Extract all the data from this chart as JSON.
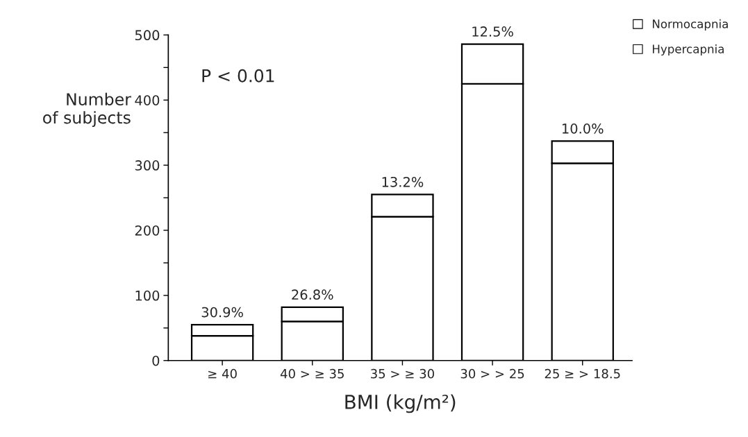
{
  "chart_data": {
    "type": "bar",
    "stacked": true,
    "xlabel": "BMI (kg/m²)",
    "ylabel": "Number\nof subjects",
    "categories": [
      "≥ 40",
      "40 > ≥ 35",
      "35 > ≥ 30",
      "30 > > 25",
      "25 ≥ > 18.5"
    ],
    "series": [
      {
        "name": "Normocapnia",
        "color": "#ffffff",
        "values": [
          38,
          60,
          221,
          425,
          303
        ]
      },
      {
        "name": "Hypercapnia",
        "color": "#ffffff",
        "values": [
          17,
          22,
          34,
          61,
          34
        ]
      }
    ],
    "ylim": [
      0,
      500
    ],
    "yticks": [
      0,
      {
        "value": 50,
        "label": null
      },
      100,
      {
        "value": 150,
        "label": null
      },
      200,
      {
        "value": 250,
        "label": null
      },
      300,
      {
        "value": 350,
        "label": null
      },
      400,
      {
        "value": 450,
        "label": null
      },
      500
    ],
    "annotations": [
      "P < 0.01",
      {
        "text": "30.9%",
        "x": "≥ 40",
        "y": 55
      },
      {
        "text": "26.8%",
        "x": "40 > ≥ 35",
        "y": 82
      },
      {
        "text": "13.2%",
        "x": "35 > ≥ 30",
        "y": 255
      },
      {
        "text": "12.5%",
        "x": "30 > > 25",
        "y": 486
      },
      {
        "text": "10.0%",
        "x": "25 ≥ > 18.5",
        "y": 337
      }
    ],
    "grid": false,
    "legend": "top right"
  }
}
